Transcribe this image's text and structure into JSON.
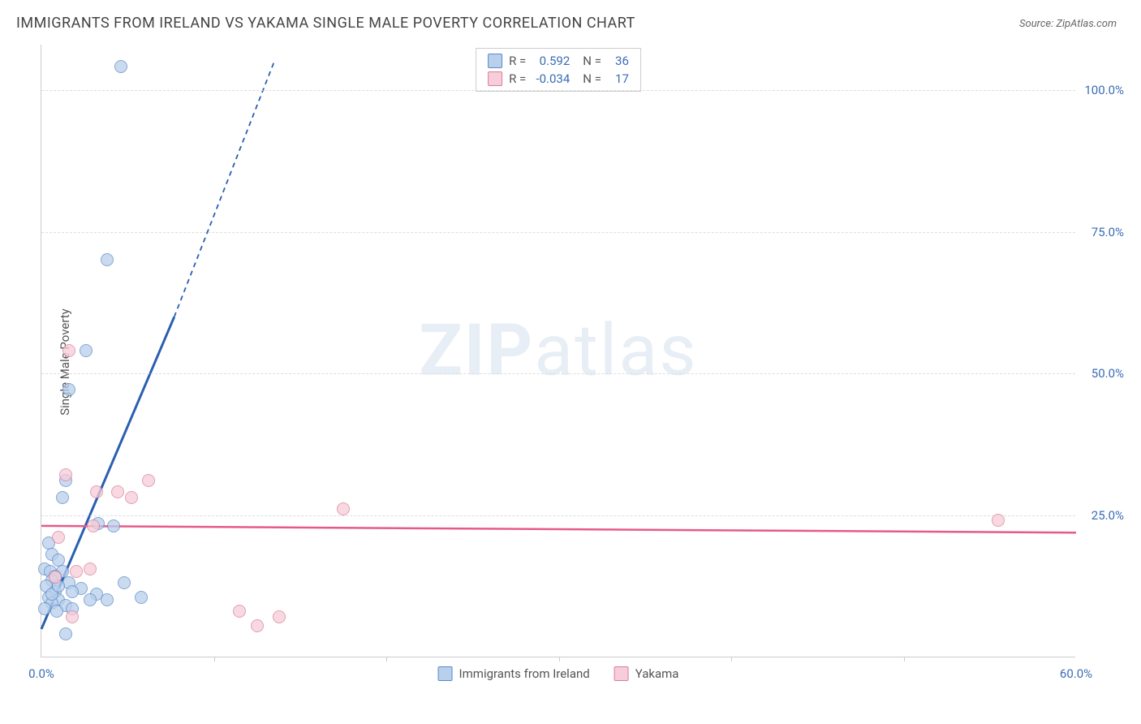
{
  "title": "IMMIGRANTS FROM IRELAND VS YAKAMA SINGLE MALE POVERTY CORRELATION CHART",
  "source_prefix": "Source: ",
  "source_site": "ZipAtlas.com",
  "ylabel": "Single Male Poverty",
  "watermark_bold": "ZIP",
  "watermark_light": "atlas",
  "chart": {
    "type": "scatter",
    "x_domain": [
      0,
      60
    ],
    "y_domain": [
      0,
      108
    ],
    "background_color": "#ffffff",
    "grid_color": "#dddddd",
    "axis_color": "#cccccc",
    "grid_dash": "4,4",
    "point_radius": 8,
    "y_ticks": [
      {
        "v": 25,
        "label": "25.0%"
      },
      {
        "v": 50,
        "label": "50.0%"
      },
      {
        "v": 75,
        "label": "75.0%"
      },
      {
        "v": 100,
        "label": "100.0%"
      }
    ],
    "x_major_ticks": [
      {
        "v": 0,
        "label": "0.0%"
      },
      {
        "v": 60,
        "label": "60.0%"
      }
    ],
    "x_minor_ticks": [
      10,
      20,
      30,
      40,
      50
    ],
    "tick_label_color": "#3b6db5",
    "tick_label_fontsize": 15
  },
  "series": [
    {
      "name": "Immigrants from Ireland",
      "fill": "#b9d0ec",
      "stroke": "#5a8ac6",
      "r_value": "0.592",
      "n_value": "36",
      "trend": {
        "x1": 0,
        "y1": 5,
        "x2": 7.7,
        "y2": 60,
        "ext_x2": 13.5,
        "ext_y2": 105,
        "stroke": "#2a5fb0",
        "width": 3,
        "dash_ext": "6,5"
      },
      "points": [
        {
          "x": 4.6,
          "y": 104
        },
        {
          "x": 3.8,
          "y": 70
        },
        {
          "x": 2.6,
          "y": 54
        },
        {
          "x": 1.6,
          "y": 47
        },
        {
          "x": 1.4,
          "y": 31
        },
        {
          "x": 1.2,
          "y": 28
        },
        {
          "x": 3.3,
          "y": 23.5
        },
        {
          "x": 4.2,
          "y": 23
        },
        {
          "x": 0.4,
          "y": 20
        },
        {
          "x": 0.6,
          "y": 18
        },
        {
          "x": 1.0,
          "y": 17
        },
        {
          "x": 0.2,
          "y": 15.5
        },
        {
          "x": 0.5,
          "y": 15
        },
        {
          "x": 1.2,
          "y": 15
        },
        {
          "x": 0.8,
          "y": 14.2
        },
        {
          "x": 0.6,
          "y": 13.5
        },
        {
          "x": 1.6,
          "y": 13
        },
        {
          "x": 0.3,
          "y": 12.5
        },
        {
          "x": 2.3,
          "y": 12
        },
        {
          "x": 0.8,
          "y": 11.5
        },
        {
          "x": 1.8,
          "y": 11.5
        },
        {
          "x": 3.2,
          "y": 11
        },
        {
          "x": 0.4,
          "y": 10.5
        },
        {
          "x": 4.8,
          "y": 13
        },
        {
          "x": 1.0,
          "y": 10
        },
        {
          "x": 5.8,
          "y": 10.5
        },
        {
          "x": 0.6,
          "y": 9.5
        },
        {
          "x": 1.4,
          "y": 9
        },
        {
          "x": 2.8,
          "y": 10
        },
        {
          "x": 0.2,
          "y": 8.5
        },
        {
          "x": 0.9,
          "y": 8
        },
        {
          "x": 1.8,
          "y": 8.5
        },
        {
          "x": 3.8,
          "y": 10
        },
        {
          "x": 1.4,
          "y": 4
        },
        {
          "x": 0.6,
          "y": 11
        },
        {
          "x": 1.0,
          "y": 12.5
        }
      ]
    },
    {
      "name": "Yakama",
      "fill": "#f6cdd8",
      "stroke": "#d97f9c",
      "r_value": "-0.034",
      "n_value": "17",
      "trend": {
        "x1": 0,
        "y1": 23.2,
        "x2": 60,
        "y2": 22.0,
        "stroke": "#e65a8a",
        "width": 2.5
      },
      "points": [
        {
          "x": 1.6,
          "y": 54
        },
        {
          "x": 1.4,
          "y": 32
        },
        {
          "x": 6.2,
          "y": 31
        },
        {
          "x": 3.2,
          "y": 29
        },
        {
          "x": 3.0,
          "y": 23
        },
        {
          "x": 4.4,
          "y": 29
        },
        {
          "x": 5.2,
          "y": 28
        },
        {
          "x": 1.0,
          "y": 21
        },
        {
          "x": 17.5,
          "y": 26
        },
        {
          "x": 2.0,
          "y": 15
        },
        {
          "x": 0.8,
          "y": 14
        },
        {
          "x": 2.8,
          "y": 15.5
        },
        {
          "x": 1.8,
          "y": 7
        },
        {
          "x": 11.5,
          "y": 8
        },
        {
          "x": 12.5,
          "y": 5.5
        },
        {
          "x": 13.8,
          "y": 7
        },
        {
          "x": 55.5,
          "y": 24
        }
      ]
    }
  ],
  "legend_top": {
    "r_label": "R =",
    "n_label": "N ="
  },
  "legend_bottom": [
    {
      "label": "Immigrants from Ireland",
      "fill": "#b9d0ec",
      "stroke": "#5a8ac6"
    },
    {
      "label": "Yakama",
      "fill": "#f6cdd8",
      "stroke": "#d97f9c"
    }
  ]
}
